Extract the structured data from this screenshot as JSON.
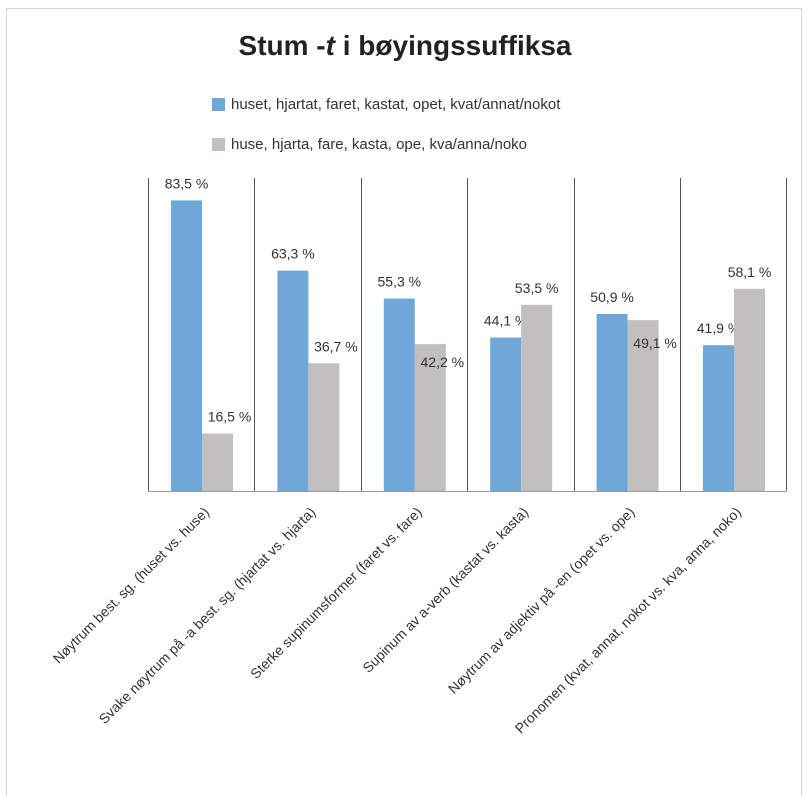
{
  "chart_data": {
    "type": "bar",
    "title_prefix": "Stum -",
    "title_italic": "t",
    "title_suffix": " i bøyingssuffiksa",
    "categories": [
      "Nøytrum best. sg. (huset vs. huse)",
      "Svake nøytrum på -a best. sg. (hjartat vs. hjarta)",
      "Sterke supinumsformer (faret vs. fare)",
      "Supinum av a-verb (kastat vs. kasta)",
      "Nøytrum av adjektiv på -en (opet vs. ope)",
      "Pronomen (kvat, annat, nokot vs. kva, anna, noko)"
    ],
    "series": [
      {
        "name": "huset, hjartat, faret, kastat, opet, kvat/annat/nokot",
        "color": "#6fa8d8",
        "values": [
          83.5,
          63.3,
          55.3,
          44.1,
          50.9,
          41.9
        ],
        "labels": [
          "83,5 %",
          "63,3 %",
          "55,3 %",
          "44,1 %",
          "50,9 %",
          "41,9 %"
        ]
      },
      {
        "name": "huse, hjarta, fare, kasta, ope, kva/anna/noko",
        "color": "#c1bfbf",
        "values": [
          16.5,
          36.7,
          42.2,
          53.5,
          49.1,
          58.1
        ],
        "labels": [
          "16,5 %",
          "36,7 %",
          "42,2 %",
          "53,5 %",
          "49,1 %",
          "58,1 %"
        ]
      }
    ],
    "ylim": [
      0,
      100
    ],
    "legend_position": "top",
    "grid": "vertical category separators"
  }
}
